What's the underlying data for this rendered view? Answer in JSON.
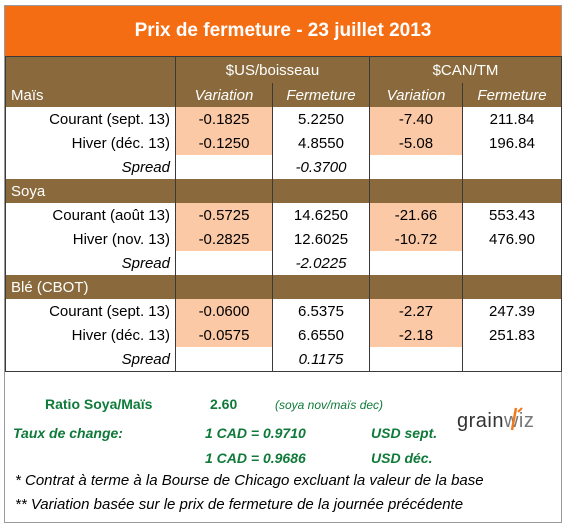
{
  "title": "Prix de fermeture - 23 juillet 2013",
  "header": {
    "usd_group": "$US/boisseau",
    "cad_group": "$CAN/TM",
    "variation": "Variation",
    "fermeture": "Fermeture"
  },
  "sections": [
    {
      "name": "Maïs",
      "rows": [
        {
          "label": "Courant (sept. 13)",
          "usd_var": "-0.1825",
          "usd_close": "5.2250",
          "cad_var": "-7.40",
          "cad_close": "211.84"
        },
        {
          "label": "Hiver (déc. 13)",
          "usd_var": "-0.1250",
          "usd_close": "4.8550",
          "cad_var": "-5.08",
          "cad_close": "196.84"
        }
      ],
      "spread_label": "Spread",
      "spread": "-0.3700"
    },
    {
      "name": "Soya",
      "rows": [
        {
          "label": "Courant (août 13)",
          "usd_var": "-0.5725",
          "usd_close": "14.6250",
          "cad_var": "-21.66",
          "cad_close": "553.43"
        },
        {
          "label": "Hiver (nov. 13)",
          "usd_var": "-0.2825",
          "usd_close": "12.6025",
          "cad_var": "-10.72",
          "cad_close": "476.90"
        }
      ],
      "spread_label": "Spread",
      "spread": "-2.0225"
    },
    {
      "name": "Blé (CBOT)",
      "rows": [
        {
          "label": "Courant (sept. 13)",
          "usd_var": "-0.0600",
          "usd_close": "6.5375",
          "cad_var": "-2.27",
          "cad_close": "247.39"
        },
        {
          "label": "Hiver (déc. 13)",
          "usd_var": "-0.0575",
          "usd_close": "6.6550",
          "cad_var": "-2.18",
          "cad_close": "251.83"
        }
      ],
      "spread_label": "Spread",
      "spread": "0.1175"
    }
  ],
  "ratio": {
    "label": "Ratio Soya/Maïs",
    "value": "2.60",
    "note": "(soya nov/maïs dec)"
  },
  "exchange": {
    "label": "Taux de change:",
    "rate1": "1 CAD =  0.9710",
    "unit1": "USD sept.",
    "rate2": "1 CAD =  0.9686",
    "unit2": "USD déc."
  },
  "logo": {
    "text_a": "grain",
    "text_b": "wiz"
  },
  "notes": [
    "* Contrat à terme à la Bourse de Chicago excluant la valeur de la base",
    "** Variation basée sur le prix de fermeture de la journée précédente"
  ],
  "colors": {
    "title_bg": "#f46d12",
    "header_bg": "#8a6a3c",
    "variation_bg": "#fbc9a6",
    "negative_text": "#c00000",
    "footer_green": "#0f7a3a"
  }
}
